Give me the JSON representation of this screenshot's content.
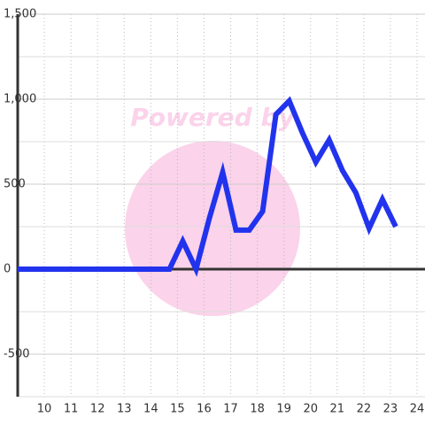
{
  "chart_data": {
    "type": "line",
    "watermark": "Powered by",
    "x": [
      9,
      14.7,
      15.2,
      15.7,
      16.2,
      16.7,
      17.2,
      17.7,
      18.2,
      18.7,
      19.2,
      19.7,
      20.2,
      20.7,
      21.2,
      21.7,
      22.2,
      22.7,
      23.2
    ],
    "series": [
      {
        "color": "#2233ee",
        "values": [
          0,
          0,
          165,
          0,
          300,
          570,
          230,
          230,
          340,
          910,
          990,
          800,
          630,
          760,
          580,
          450,
          240,
          410,
          250
        ]
      }
    ],
    "xlim": [
      9,
      24.3
    ],
    "xticks": [
      10,
      11,
      12,
      13,
      14,
      15,
      16,
      17,
      18,
      19,
      20,
      21,
      22,
      23,
      24
    ],
    "ylim": [
      -750,
      1500
    ],
    "yticks": [
      -500,
      0,
      500,
      {
        "value": 1000,
        "label": "1,000"
      },
      {
        "value": 1500,
        "label": "1,500"
      }
    ],
    "yminor": [
      -750,
      -250,
      250,
      750,
      1250
    ],
    "grid": true
  }
}
